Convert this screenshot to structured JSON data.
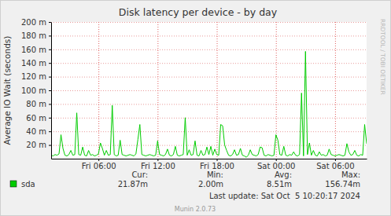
{
  "chart_data": {
    "type": "line",
    "title": "Disk latency per device - by day",
    "y_label": "Average IO Wait (seconds)",
    "x": [
      1.2,
      1.4,
      1.6,
      1.8,
      2,
      2.2,
      2.4,
      2.6,
      2.8,
      3,
      3.2,
      3.4,
      3.6,
      3.8,
      4,
      4.2,
      4.4,
      4.6,
      4.8,
      5,
      5.2,
      5.4,
      5.6,
      5.8,
      6,
      6.2,
      6.4,
      6.6,
      6.8,
      7,
      7.2,
      7.4,
      7.6,
      7.8,
      8,
      8.2,
      8.4,
      8.6,
      8.8,
      9,
      9.2,
      9.4,
      9.6,
      9.8,
      10,
      10.2,
      10.4,
      10.6,
      10.8,
      11,
      11.2,
      11.4,
      11.6,
      11.8,
      12,
      12.2,
      12.4,
      12.6,
      12.8,
      13,
      13.2,
      13.4,
      13.6,
      13.8,
      14,
      14.2,
      14.4,
      14.6,
      14.8,
      15,
      15.2,
      15.4,
      15.6,
      15.8,
      16,
      16.2,
      16.4,
      16.6,
      16.8,
      17,
      17.2,
      17.4,
      17.6,
      17.8,
      18,
      18.2,
      18.4,
      18.6,
      18.8,
      19,
      19.2,
      19.4,
      19.6,
      19.8,
      20,
      20.2,
      20.4,
      20.6,
      20.8,
      21,
      21.2,
      21.4,
      21.6,
      21.8,
      22,
      22.2,
      22.4,
      22.6,
      22.8,
      23,
      23.2,
      23.4,
      23.6,
      23.8,
      24,
      24.2,
      24.4,
      24.6,
      24.8,
      25,
      25.2,
      25.4,
      25.6,
      25.8,
      26,
      26.2,
      26.4,
      26.6,
      26.8,
      27,
      27.2,
      27.4,
      27.6,
      27.8,
      28,
      28.2,
      28.4,
      28.6,
      28.8,
      29,
      29.2,
      29.4,
      29.6,
      29.8,
      30,
      30.2,
      30.4,
      30.6,
      30.8,
      31,
      31.2,
      31.4,
      31.6,
      31.8,
      32,
      32.2,
      32.4,
      32.6,
      32.8,
      33,
      33.2
    ],
    "series": [
      {
        "name": "sda",
        "color": "#00cc00",
        "values": [
          0.005,
          0.004,
          0.006,
          0.005,
          0.007,
          0.035,
          0.015,
          0.005,
          0.004,
          0.006,
          0.012,
          0.005,
          0.006,
          0.067,
          0.006,
          0.005,
          0.017,
          0.005,
          0.004,
          0.012,
          0.005,
          0.006,
          0.004,
          0.005,
          0.007,
          0.023,
          0.015,
          0.005,
          0.012,
          0.005,
          0.006,
          0.078,
          0.006,
          0.004,
          0.005,
          0.027,
          0.006,
          0.005,
          0.004,
          0.005,
          0.006,
          0.005,
          0.004,
          0.007,
          0.028,
          0.05,
          0.006,
          0.005,
          0.004,
          0.005,
          0.006,
          0.005,
          0.004,
          0.005,
          0.026,
          0.006,
          0.005,
          0.004,
          0.006,
          0.014,
          0.005,
          0.004,
          0.006,
          0.018,
          0.005,
          0.004,
          0.005,
          0.006,
          0.06,
          0.005,
          0.013,
          0.005,
          0.006,
          0.026,
          0.005,
          0.004,
          0.012,
          0.005,
          0.006,
          0.017,
          0.006,
          0.018,
          0.005,
          0.014,
          0.006,
          0.005,
          0.05,
          0.048,
          0.02,
          0.012,
          0.005,
          0.004,
          0.006,
          0.013,
          0.005,
          0.006,
          0.015,
          0.005,
          0.004,
          0.002,
          0.005,
          0.013,
          0.006,
          0.005,
          0.004,
          0.006,
          0.017,
          0.016,
          0.005,
          0.004,
          0.006,
          0.005,
          0.004,
          0.005,
          0.035,
          0.027,
          0.006,
          0.005,
          0.018,
          0.005,
          0.004,
          0.006,
          0.005,
          0.01,
          0.005,
          0.004,
          0.006,
          0.096,
          0.004,
          0.157,
          0.006,
          0.023,
          0.005,
          0.012,
          0.005,
          0.004,
          0.01,
          0.005,
          0.006,
          0.004,
          0.005,
          0.014,
          0.006,
          0.005,
          0.004,
          0.005,
          0.006,
          0.005,
          0.004,
          0.005,
          0.022,
          0.01,
          0.005,
          0.006,
          0.012,
          0.005,
          0.004,
          0.006,
          0.005,
          0.05,
          0.02187
        ]
      }
    ],
    "xlim": [
      1.2,
      33.2
    ],
    "xticks": [
      {
        "value": 6,
        "label": "Fri 06:00"
      },
      {
        "value": 12,
        "label": "Fri 12:00"
      },
      {
        "value": 18,
        "label": "Fri 18:00"
      },
      {
        "value": 24,
        "label": "Sat 00:00"
      },
      {
        "value": 30,
        "label": "Sat 06:00"
      }
    ],
    "ylim": [
      0,
      0.2
    ],
    "yticks": [
      {
        "value": 0.02,
        "label": "20 m"
      },
      {
        "value": 0.04,
        "label": "40 m"
      },
      {
        "value": 0.06,
        "label": "60 m"
      },
      {
        "value": 0.08,
        "label": "80 m"
      },
      {
        "value": 0.1,
        "label": "100 m"
      },
      {
        "value": 0.12,
        "label": "120 m"
      },
      {
        "value": 0.14,
        "label": "140 m"
      },
      {
        "value": 0.16,
        "label": "160 m"
      },
      {
        "value": 0.18,
        "label": "180 m"
      },
      {
        "value": 0.2,
        "label": "200 m"
      }
    ],
    "grid": true,
    "summary": {
      "headers": [
        "Cur:",
        "Min:",
        "Avg:",
        "Max:"
      ],
      "values": [
        "21.87m",
        "2.00m",
        "8.51m",
        "156.74m"
      ]
    },
    "footer": "Last update: Sat Oct  5 10:20:17 2024",
    "version": "Munin 2.0.73",
    "watermark": "RRDTOOL / TOBI OETIKER"
  }
}
